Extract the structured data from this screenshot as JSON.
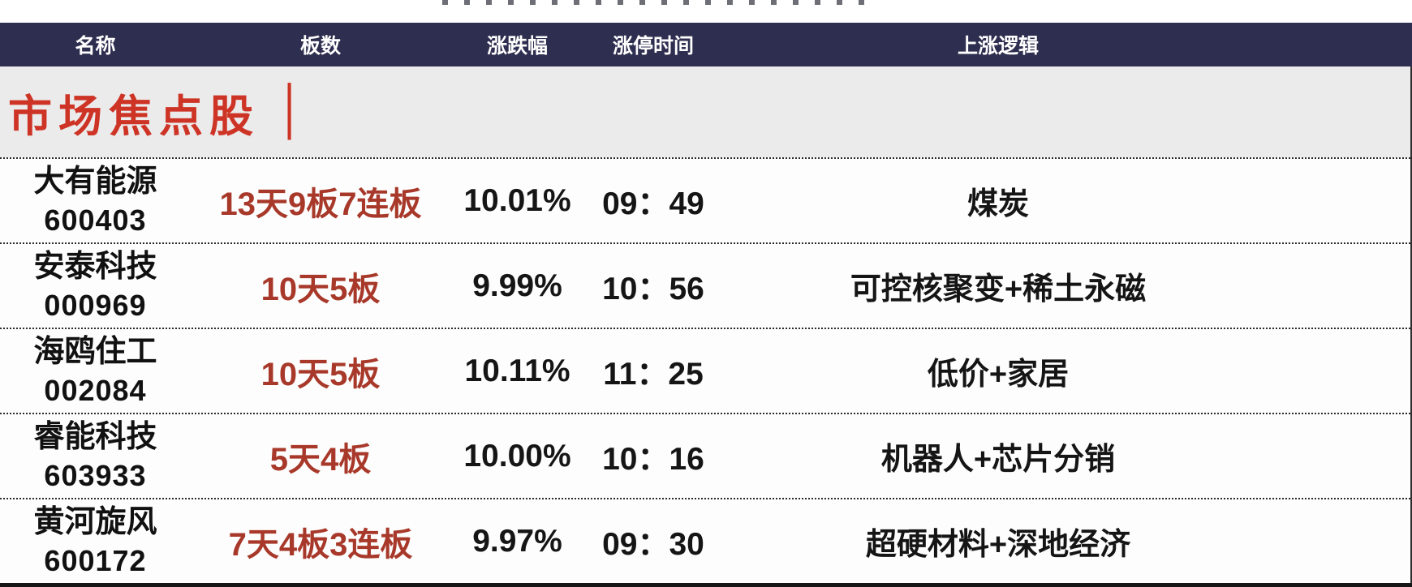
{
  "colors": {
    "header_bg": "#2e2e50",
    "header_text": "#ffffff",
    "section_bg": "#ebebeb",
    "section_red": "#ce3426",
    "board_red": "#a8392a",
    "text": "#141414"
  },
  "chart_data": {
    "type": "table",
    "section_title": "市场焦点股",
    "section_bar": "│",
    "columns": [
      "名称",
      "板数",
      "涨跌幅",
      "涨停时间",
      "上涨逻辑"
    ],
    "rows": [
      {
        "name": "大有能源",
        "code": "600403",
        "boards": "13天9板7连板",
        "change_pct": "10.01%",
        "limit_time": "09：49",
        "logic": "煤炭"
      },
      {
        "name": "安泰科技",
        "code": "000969",
        "boards": "10天5板",
        "change_pct": "9.99%",
        "limit_time": "10：56",
        "logic": "可控核聚变+稀土永磁"
      },
      {
        "name": "海鸥住工",
        "code": "002084",
        "boards": "10天5板",
        "change_pct": "10.11%",
        "limit_time": "11：25",
        "logic": "低价+家居"
      },
      {
        "name": "睿能科技",
        "code": "603933",
        "boards": "5天4板",
        "change_pct": "10.00%",
        "limit_time": "10：16",
        "logic": "机器人+芯片分销"
      },
      {
        "name": "黄河旋风",
        "code": "600172",
        "boards": "7天4板3连板",
        "change_pct": "9.97%",
        "limit_time": "09：30",
        "logic": "超硬材料+深地经济"
      }
    ]
  }
}
